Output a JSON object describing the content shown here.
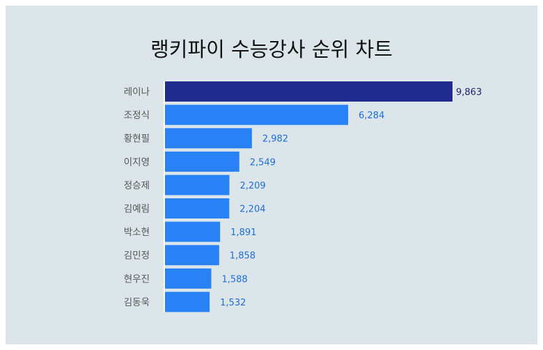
{
  "chart_data": {
    "type": "bar",
    "orientation": "horizontal",
    "title": "랭키파이 수능강사 순위 차트",
    "categories": [
      "레이나",
      "조정식",
      "황현필",
      "이지영",
      "정승제",
      "김예림",
      "박소현",
      "김민정",
      "현우진",
      "김동욱"
    ],
    "values": [
      9863,
      6284,
      2982,
      2549,
      2209,
      2204,
      1891,
      1858,
      1588,
      1532
    ],
    "value_labels": [
      "9,863",
      "6,284",
      "2,982",
      "2,549",
      "2,209",
      "2,204",
      "1,891",
      "1,858",
      "1,588",
      "1,532"
    ],
    "xlim": [
      0,
      9863
    ],
    "grid": false,
    "colors": {
      "highlight_bar": "#212a8f",
      "bar": "#2882f6",
      "highlight_label": "#1a1f6e",
      "label": "#1c6fd8",
      "category": "#555555",
      "background": "#dce5e9"
    }
  }
}
